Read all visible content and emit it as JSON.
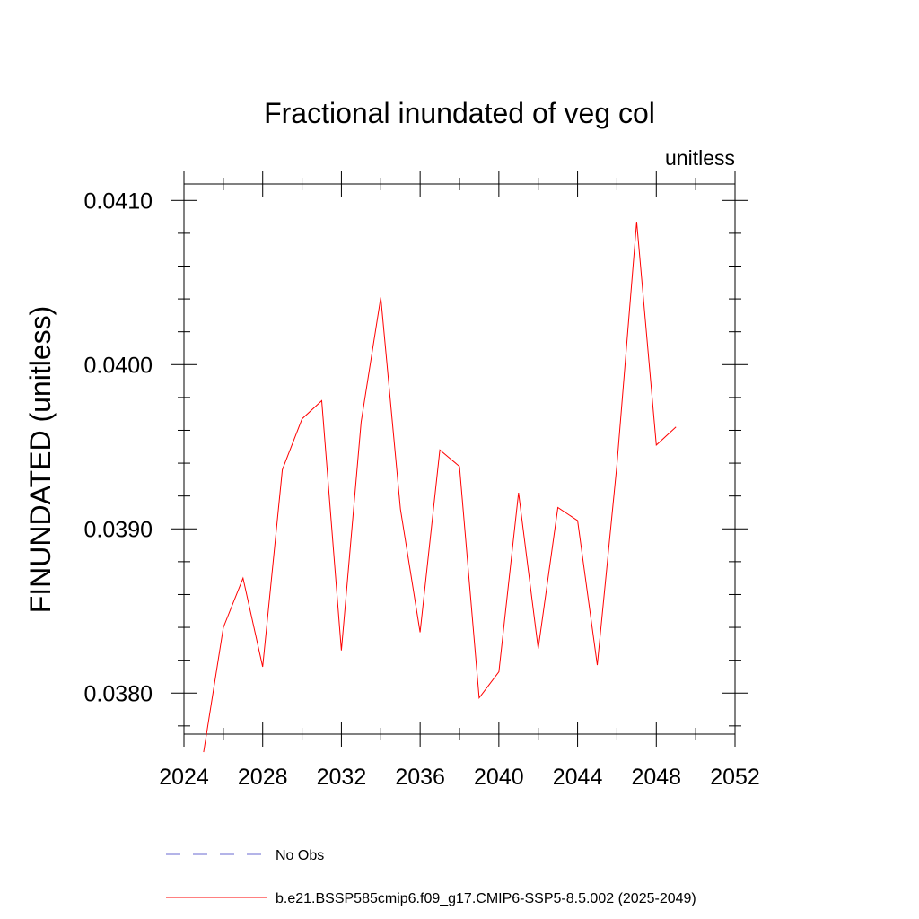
{
  "chart_data": {
    "type": "line",
    "title": "Fractional inundated of veg col",
    "units_label": "unitless",
    "ylabel": "FINUNDATED  (unitless)",
    "xlabel": "",
    "xlim": [
      2024,
      2052
    ],
    "ylim": [
      0.03775,
      0.0411
    ],
    "x_ticks": [
      2024,
      2028,
      2032,
      2036,
      2040,
      2044,
      2048,
      2052
    ],
    "y_ticks": [
      0.038,
      0.039,
      0.04,
      0.041
    ],
    "y_tick_labels": [
      "0.0380",
      "0.0390",
      "0.0400",
      "0.0410"
    ],
    "grid": false,
    "colors": {
      "model": "#ff0000",
      "obs": "#6a6ad0"
    },
    "series": [
      {
        "name": "b.e21.BSSP585cmip6.f09_g17.CMIP6-SSP5-8.5.002 (2025-2049)",
        "x": [
          2025,
          2026,
          2027,
          2028,
          2029,
          2030,
          2031,
          2032,
          2033,
          2034,
          2035,
          2036,
          2037,
          2038,
          2039,
          2040,
          2041,
          2042,
          2043,
          2044,
          2045,
          2046,
          2047,
          2048,
          2049
        ],
        "values": [
          0.03764,
          0.0384,
          0.0387,
          0.03816,
          0.03936,
          0.03967,
          0.03978,
          0.03826,
          0.03965,
          0.04041,
          0.03912,
          0.03837,
          0.03948,
          0.03938,
          0.03797,
          0.03813,
          0.03922,
          0.03827,
          0.03913,
          0.03905,
          0.03817,
          0.03939,
          0.04087,
          0.03951,
          0.03962
        ]
      }
    ],
    "legend": {
      "placement": "bottom",
      "entries": [
        {
          "label": "No Obs",
          "style": "dashed",
          "color": "#6a6ad0"
        },
        {
          "label": "b.e21.BSSP585cmip6.f09_g17.CMIP6-SSP5-8.5.002 (2025-2049)",
          "style": "solid",
          "color": "#ff0000"
        }
      ]
    }
  }
}
